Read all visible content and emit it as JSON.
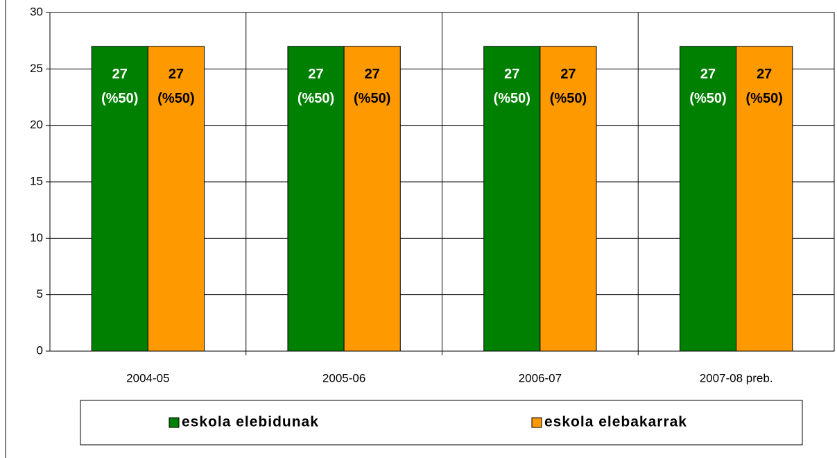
{
  "chart_data": {
    "type": "bar",
    "categories": [
      "2004-05",
      "2005-06",
      "2006-07",
      "2007-08 preb."
    ],
    "series": [
      {
        "name": "eskola elebidunak",
        "color": "#008000",
        "label_color": "#ffffff",
        "values": [
          27,
          27,
          27,
          27
        ],
        "value_labels": [
          "27\n(%50)",
          "27\n(%50)",
          "27\n(%50)",
          "27\n(%50)"
        ]
      },
      {
        "name": "eskola elebakarrak",
        "color": "#ff9900",
        "label_color": "#000000",
        "values": [
          27,
          27,
          27,
          27
        ],
        "value_labels": [
          "27\n(%50)",
          "27\n(%50)",
          "27\n(%50)",
          "27\n(%50)"
        ]
      }
    ],
    "ylim": [
      0,
      30
    ],
    "yticks": [
      0,
      5,
      10,
      15,
      20,
      25,
      30
    ],
    "grid": true,
    "legend": "bottom"
  }
}
